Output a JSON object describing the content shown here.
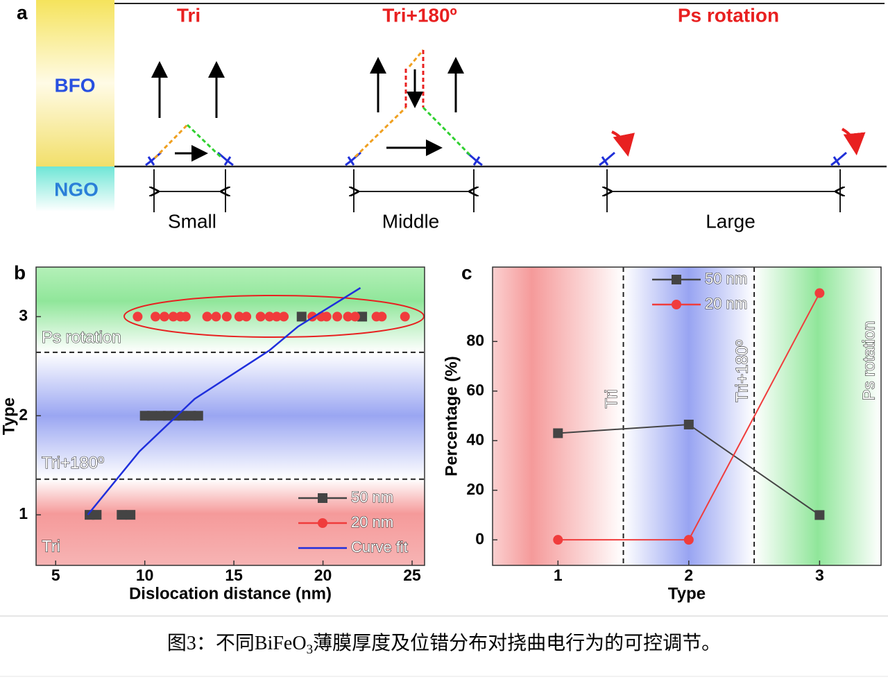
{
  "panel_a": {
    "label": "a",
    "layers": [
      "BFO",
      "NGO"
    ],
    "columns": [
      {
        "title": "Tri",
        "size": "Small"
      },
      {
        "title": "Tri+180º",
        "size": "Middle"
      },
      {
        "title": "Ps rotation",
        "size": "Large"
      }
    ]
  },
  "chart_data": [
    {
      "type": "scatter",
      "panel_label": "b",
      "xlabel": "Dislocation distance (nm)",
      "ylabel": "Type",
      "xlim": [
        3.9,
        25.7
      ],
      "ylim": [
        0.49,
        3.5
      ],
      "xticks": [
        5,
        10,
        15,
        20,
        25
      ],
      "yticks": [
        1,
        2,
        3
      ],
      "boundaries": [
        1.36,
        2.64
      ],
      "annotations": [
        "Ps rotation",
        "Tri+180º",
        "Tri"
      ],
      "series": [
        {
          "name": "50 nm",
          "color": "#444444",
          "marker": "square",
          "x": [
            6.9,
            7.3,
            8.7,
            9.2,
            10.0,
            10.4,
            10.9,
            11.3,
            11.7,
            12.1,
            12.6,
            13.0,
            18.8,
            22.2
          ],
          "values": [
            1,
            1,
            1,
            1,
            2,
            2,
            2,
            2,
            2,
            2,
            2,
            2,
            3,
            3
          ]
        },
        {
          "name": "20 nm",
          "color": "#f03c3c",
          "marker": "circle",
          "x": [
            9.6,
            10.6,
            11.1,
            11.6,
            12.0,
            12.3,
            13.5,
            14.0,
            14.6,
            15.3,
            15.7,
            16.5,
            17.0,
            17.4,
            17.8,
            19.4,
            19.9,
            20.2,
            20.8,
            21.4,
            21.8,
            23.0,
            23.3,
            24.6
          ],
          "values": [
            3,
            3,
            3,
            3,
            3,
            3,
            3,
            3,
            3,
            3,
            3,
            3,
            3,
            3,
            3,
            3,
            3,
            3,
            3,
            3,
            3,
            3,
            3,
            3
          ]
        },
        {
          "name": "Curve fit",
          "color": "#1f2fdc",
          "marker": "none",
          "x": [
            6.8,
            9.7,
            12.8,
            17.0,
            18.6,
            22.1
          ],
          "values": [
            1.0,
            1.64,
            2.17,
            2.66,
            2.9,
            3.29
          ]
        }
      ]
    },
    {
      "type": "line",
      "panel_label": "c",
      "xlabel": "Type",
      "ylabel": "Percentage (%)",
      "xlim": [
        0.5,
        3.47
      ],
      "ylim": [
        -10.3,
        110
      ],
      "xticks": [
        1,
        2,
        3
      ],
      "yticks": [
        0,
        20,
        40,
        60,
        80
      ],
      "boundaries": [
        1.5,
        2.5
      ],
      "annotations": [
        "Tri",
        "Tri+180º",
        "Ps rotation"
      ],
      "series": [
        {
          "name": "50 nm",
          "color": "#444444",
          "marker": "square",
          "x": [
            1,
            2,
            3
          ],
          "values": [
            43,
            46.5,
            10
          ]
        },
        {
          "name": "20 nm",
          "color": "#f03c3c",
          "marker": "circle",
          "x": [
            1,
            2,
            3
          ],
          "values": [
            0,
            0,
            99.5
          ]
        }
      ]
    }
  ],
  "caption": {
    "before": "图3：不同BiFeO",
    "subscript": "3",
    "after": "薄膜厚度及位错分布对挠曲电行为的可控调节。"
  }
}
